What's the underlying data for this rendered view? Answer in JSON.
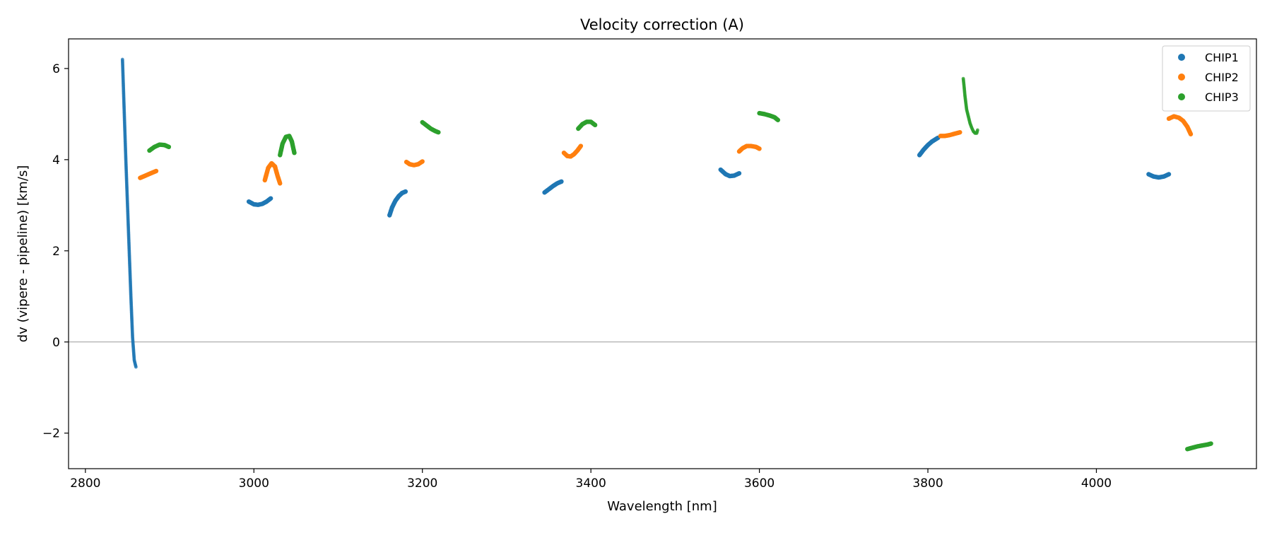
{
  "chart_data": {
    "type": "scatter",
    "title": "Velocity correction (A)",
    "xlabel": "Wavelength [nm]",
    "ylabel": "dv (vipere - pipeline) [km/s]",
    "xlim": [
      2780,
      4190
    ],
    "ylim": [
      -2.78,
      6.65
    ],
    "x_ticks": [
      2800,
      3000,
      3200,
      3400,
      3600,
      3800,
      4000
    ],
    "y_ticks": [
      -2,
      0,
      2,
      4,
      6
    ],
    "x_tick_labels": [
      "2800",
      "3000",
      "3200",
      "3400",
      "3600",
      "3800",
      "4000"
    ],
    "y_tick_labels": [
      "−2",
      "0",
      "2",
      "4",
      "6"
    ],
    "grid": false,
    "reference_line_y": 0,
    "legend_position": "top-right",
    "series": [
      {
        "name": "CHIP1",
        "color": "#1f77b4",
        "segments": [
          {
            "x": [
              2844,
              2846,
              2848,
              2850,
              2852,
              2854,
              2856,
              2858,
              2860
            ],
            "y": [
              6.2,
              5.1,
              4.0,
              3.0,
              2.0,
              1.0,
              0.1,
              -0.4,
              -0.55
            ]
          },
          {
            "x": [
              2994,
              3000,
              3005,
              3010,
              3015,
              3020
            ],
            "y": [
              3.08,
              3.02,
              3.01,
              3.03,
              3.08,
              3.15
            ]
          },
          {
            "x": [
              3161,
              3164,
              3168,
              3172,
              3176,
              3180
            ],
            "y": [
              2.78,
              2.95,
              3.1,
              3.2,
              3.27,
              3.3
            ]
          },
          {
            "x": [
              3345,
              3350,
              3355,
              3360,
              3365
            ],
            "y": [
              3.28,
              3.35,
              3.42,
              3.48,
              3.52
            ]
          },
          {
            "x": [
              3554,
              3560,
              3565,
              3570,
              3576
            ],
            "y": [
              3.78,
              3.68,
              3.64,
              3.65,
              3.7
            ]
          },
          {
            "x": [
              3790,
              3795,
              3800,
              3805,
              3812
            ],
            "y": [
              4.1,
              4.22,
              4.32,
              4.4,
              4.48
            ]
          },
          {
            "x": [
              4062,
              4068,
              4074,
              4080,
              4086
            ],
            "y": [
              3.68,
              3.63,
              3.61,
              3.63,
              3.68
            ]
          }
        ]
      },
      {
        "name": "CHIP2",
        "color": "#ff7f0e",
        "segments": [
          {
            "x": [
              2865,
              2870,
              2875,
              2880,
              2884
            ],
            "y": [
              3.6,
              3.64,
              3.68,
              3.72,
              3.75
            ]
          },
          {
            "x": [
              3013,
              3017,
              3021,
              3025,
              3028,
              3031
            ],
            "y": [
              3.55,
              3.82,
              3.92,
              3.85,
              3.65,
              3.48
            ]
          },
          {
            "x": [
              3181,
              3185,
              3190,
              3195,
              3200
            ],
            "y": [
              3.95,
              3.9,
              3.88,
              3.9,
              3.96
            ]
          },
          {
            "x": [
              3368,
              3372,
              3376,
              3380,
              3384,
              3388
            ],
            "y": [
              4.15,
              4.08,
              4.07,
              4.12,
              4.2,
              4.3
            ]
          },
          {
            "x": [
              3576,
              3580,
              3585,
              3590,
              3596,
              3600
            ],
            "y": [
              4.18,
              4.25,
              4.3,
              4.3,
              4.28,
              4.24
            ]
          },
          {
            "x": [
              3815,
              3820,
              3826,
              3832,
              3838
            ],
            "y": [
              4.52,
              4.52,
              4.54,
              4.57,
              4.6
            ]
          },
          {
            "x": [
              4086,
              4092,
              4098,
              4103,
              4108,
              4112
            ],
            "y": [
              4.9,
              4.95,
              4.92,
              4.85,
              4.72,
              4.56
            ]
          }
        ]
      },
      {
        "name": "CHIP3",
        "color": "#2ca02c",
        "segments": [
          {
            "x": [
              2876,
              2882,
              2888,
              2894,
              2899
            ],
            "y": [
              4.2,
              4.28,
              4.33,
              4.32,
              4.28
            ]
          },
          {
            "x": [
              3031,
              3034,
              3038,
              3042,
              3045,
              3048
            ],
            "y": [
              4.1,
              4.35,
              4.5,
              4.52,
              4.4,
              4.15
            ]
          },
          {
            "x": [
              3200,
              3205,
              3210,
              3215,
              3219
            ],
            "y": [
              4.82,
              4.75,
              4.68,
              4.63,
              4.6
            ]
          },
          {
            "x": [
              3385,
              3390,
              3395,
              3400,
              3405
            ],
            "y": [
              4.68,
              4.78,
              4.83,
              4.83,
              4.76
            ]
          },
          {
            "x": [
              3600,
              3606,
              3612,
              3618,
              3622
            ],
            "y": [
              5.02,
              5.0,
              4.97,
              4.93,
              4.87
            ]
          },
          {
            "x": [
              3842,
              3843,
              3844,
              3845,
              3846,
              3848,
              3850,
              3852,
              3854,
              3856,
              3858,
              3859
            ],
            "y": [
              5.78,
              5.6,
              5.4,
              5.25,
              5.1,
              4.95,
              4.8,
              4.7,
              4.62,
              4.58,
              4.58,
              4.65
            ]
          },
          {
            "x": [
              4108,
              4114,
              4120,
              4126,
              4132,
              4136
            ],
            "y": [
              -2.35,
              -2.32,
              -2.29,
              -2.27,
              -2.25,
              -2.23
            ]
          }
        ]
      }
    ]
  }
}
